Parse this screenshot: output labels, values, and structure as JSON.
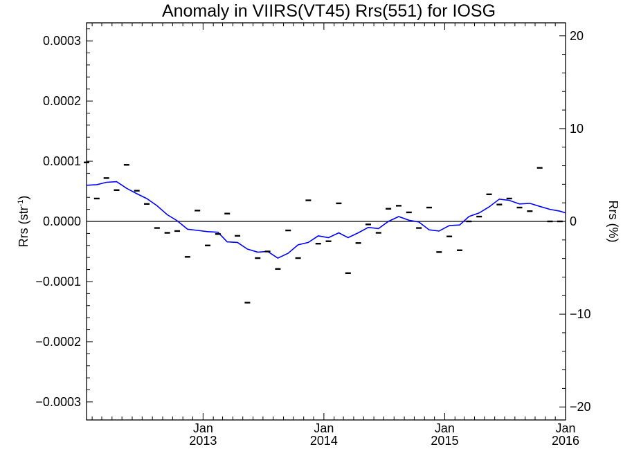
{
  "chart_data": {
    "type": "line",
    "title": "Anomaly in VIIRS(VT45) Rrs(551) for IOSG",
    "ylabel": "Rrs (str",
    "ylabel_sup": "-1",
    "ylabel_close": ")",
    "y2label": "Rrs (%)",
    "xlim": [
      "2012-01-15",
      "2016-01-01"
    ],
    "ylim": [
      -0.00033,
      0.00033
    ],
    "y2lim": [
      -21.4,
      21.4
    ],
    "grid": false,
    "zero_line": true,
    "y_ticks": [
      {
        "value": 0.0003,
        "label": "0.0003"
      },
      {
        "value": 0.0002,
        "label": "0.0002"
      },
      {
        "value": 0.0001,
        "label": "0.0001"
      },
      {
        "value": 0.0,
        "label": "0.0000"
      },
      {
        "value": -0.0001,
        "label": "−0.0001"
      },
      {
        "value": -0.0002,
        "label": "−0.0002"
      },
      {
        "value": -0.0003,
        "label": "−0.0003"
      }
    ],
    "y2_ticks": [
      {
        "value": 20,
        "label": "20"
      },
      {
        "value": 10,
        "label": "10"
      },
      {
        "value": 0,
        "label": "0"
      },
      {
        "value": -10,
        "label": "−10"
      },
      {
        "value": -20,
        "label": "−20"
      }
    ],
    "x_ticks": [
      {
        "date": "2013-01-01",
        "month": "Jan",
        "year": "2013"
      },
      {
        "date": "2014-01-01",
        "month": "Jan",
        "year": "2014"
      },
      {
        "date": "2015-01-01",
        "month": "Jan",
        "year": "2015"
      },
      {
        "date": "2016-01-01",
        "month": "Jan",
        "year": "2016"
      }
    ],
    "colors": {
      "smoothed": "#0000ff",
      "points": "#000000",
      "axes": "#000000"
    },
    "series": [
      {
        "style": "markers",
        "x": [
          "2012-01-15",
          "2012-02-15",
          "2012-03-15",
          "2012-04-15",
          "2012-05-15",
          "2012-06-15",
          "2012-07-15",
          "2012-08-15",
          "2012-09-15",
          "2012-10-15",
          "2012-11-15",
          "2012-12-15",
          "2013-01-15",
          "2013-02-15",
          "2013-03-15",
          "2013-04-15",
          "2013-05-15",
          "2013-06-15",
          "2013-07-15",
          "2013-08-15",
          "2013-09-15",
          "2013-10-15",
          "2013-11-15",
          "2013-12-15",
          "2014-01-15",
          "2014-02-15",
          "2014-03-15",
          "2014-04-15",
          "2014-05-15",
          "2014-06-15",
          "2014-07-15",
          "2014-08-15",
          "2014-09-15",
          "2014-10-15",
          "2014-11-15",
          "2014-12-15",
          "2015-01-15",
          "2015-02-15",
          "2015-03-15",
          "2015-04-15",
          "2015-05-15",
          "2015-06-15",
          "2015-07-15",
          "2015-08-15",
          "2015-09-15",
          "2015-10-15",
          "2015-11-15",
          "2015-12-15"
        ],
        "values": [
          9.8e-05,
          3.8e-05,
          7.2e-05,
          5.2e-05,
          9.4e-05,
          5.1e-05,
          2.9e-05,
          -1.1e-05,
          -1.9e-05,
          -1.6e-05,
          -5.9e-05,
          1.8e-05,
          -4e-05,
          -2.1e-05,
          1.3e-05,
          -2.4e-05,
          -0.000135,
          -6.1e-05,
          -5e-05,
          -7.9e-05,
          -1.5e-05,
          -6.1e-05,
          3.5e-05,
          -3.7e-05,
          -3.3e-05,
          3e-05,
          -8.6e-05,
          -3.6e-05,
          -5e-06,
          -1.9e-05,
          2.1e-05,
          2.6e-05,
          1.5e-05,
          -1.1e-05,
          2.3e-05,
          -5.1e-05,
          -2.5e-05,
          -4.8e-05,
          0.0,
          8e-06,
          4.5e-05,
          2.8e-05,
          3.8e-05,
          2.3e-05,
          1.7e-05,
          8.9e-05,
          0.0,
          0.0
        ]
      },
      {
        "style": "line",
        "x": [
          "2012-01-15",
          "2012-02-15",
          "2012-03-15",
          "2012-04-15",
          "2012-05-15",
          "2012-06-15",
          "2012-07-15",
          "2012-08-15",
          "2012-09-15",
          "2012-10-15",
          "2012-11-15",
          "2012-12-15",
          "2013-01-15",
          "2013-02-15",
          "2013-03-15",
          "2013-04-15",
          "2013-05-15",
          "2013-06-15",
          "2013-07-15",
          "2013-08-15",
          "2013-09-15",
          "2013-10-15",
          "2013-11-15",
          "2013-12-15",
          "2014-01-15",
          "2014-02-15",
          "2014-03-15",
          "2014-04-15",
          "2014-05-15",
          "2014-06-15",
          "2014-07-15",
          "2014-08-15",
          "2014-09-15",
          "2014-10-15",
          "2014-11-15",
          "2014-12-15",
          "2015-01-15",
          "2015-02-15",
          "2015-03-15",
          "2015-04-15",
          "2015-05-15",
          "2015-06-15",
          "2015-07-15",
          "2015-08-15",
          "2015-09-15",
          "2015-10-15",
          "2015-11-15",
          "2015-12-15",
          "2016-01-01"
        ],
        "values": [
          6e-05,
          6.1e-05,
          6.5e-05,
          6.6e-05,
          5.5e-05,
          4.6e-05,
          3.8e-05,
          2.6e-05,
          1.1e-05,
          1e-06,
          -1.3e-05,
          -1.5e-05,
          -1.7e-05,
          -1.8e-05,
          -3.4e-05,
          -3.5e-05,
          -4.6e-05,
          -5.1e-05,
          -5e-05,
          -6.1e-05,
          -5.3e-05,
          -3.9e-05,
          -3.5e-05,
          -2.4e-05,
          -2.7e-05,
          -1.9e-05,
          -2.7e-05,
          -1.9e-05,
          -1e-05,
          -1.2e-05,
          0.0,
          8e-06,
          2e-06,
          -1e-06,
          -1.4e-05,
          -1.6e-05,
          -7e-06,
          -6e-06,
          8e-06,
          1.4e-05,
          2.4e-05,
          3.7e-05,
          3.5e-05,
          2.9e-05,
          3e-05,
          2.5e-05,
          2e-05,
          1.7e-05,
          1.4e-05
        ]
      }
    ]
  }
}
